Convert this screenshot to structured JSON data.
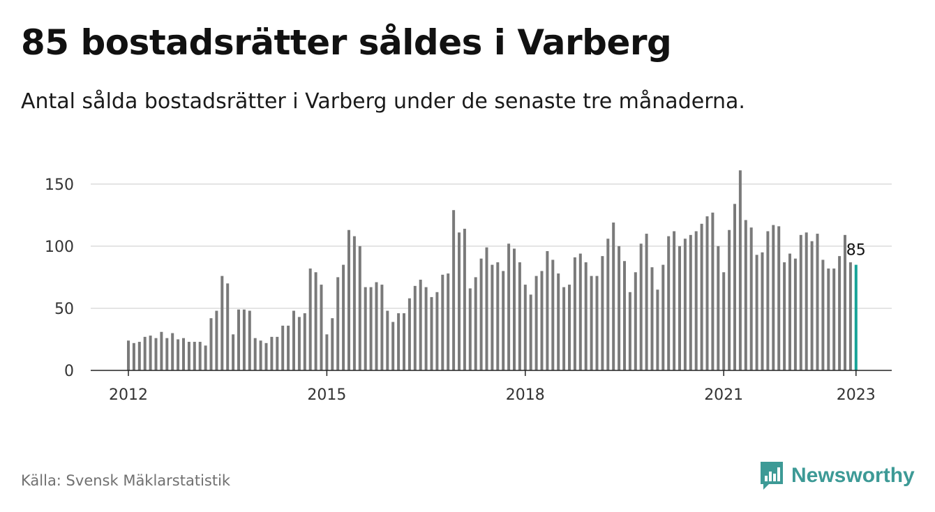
{
  "title": "85 bostadsrätter såldes i Varberg",
  "subtitle": "Antal sålda bostadsrätter i Varberg under de senaste tre månaderna.",
  "source": "Källa: Svensk Mäklarstatistik",
  "brand": {
    "name": "Newsworthy",
    "icon": "newsworthy-logo-icon",
    "color": "#3d9a96"
  },
  "chart_data": {
    "type": "bar",
    "x_start": "2012-01",
    "x_ticks": [
      "2012",
      "2015",
      "2018",
      "2021",
      "2023"
    ],
    "y_ticks": [
      "0",
      "50",
      "100",
      "150"
    ],
    "ylim": [
      0,
      160
    ],
    "grid": true,
    "bar_color": "#7a7a7a",
    "highlight_color": "#17a398",
    "highlight_label": "85",
    "values": [
      24,
      22,
      23,
      27,
      28,
      26,
      31,
      26,
      30,
      25,
      26,
      23,
      23,
      23,
      20,
      42,
      48,
      76,
      70,
      29,
      49,
      49,
      48,
      26,
      24,
      22,
      27,
      27,
      36,
      36,
      48,
      43,
      46,
      82,
      79,
      69,
      29,
      42,
      75,
      85,
      113,
      108,
      100,
      67,
      67,
      71,
      69,
      48,
      39,
      46,
      46,
      58,
      68,
      73,
      67,
      59,
      63,
      77,
      78,
      129,
      111,
      114,
      66,
      75,
      90,
      99,
      85,
      87,
      80,
      102,
      98,
      87,
      69,
      61,
      76,
      80,
      96,
      89,
      78,
      67,
      69,
      91,
      94,
      87,
      76,
      76,
      92,
      106,
      119,
      100,
      88,
      63,
      79,
      102,
      110,
      83,
      65,
      85,
      108,
      112,
      100,
      106,
      109,
      112,
      118,
      124,
      127,
      100,
      79,
      113,
      134,
      161,
      121,
      115,
      93,
      95,
      112,
      117,
      116,
      87,
      94,
      90,
      109,
      111,
      104,
      110,
      89,
      82,
      82,
      92,
      109,
      87,
      85
    ]
  }
}
